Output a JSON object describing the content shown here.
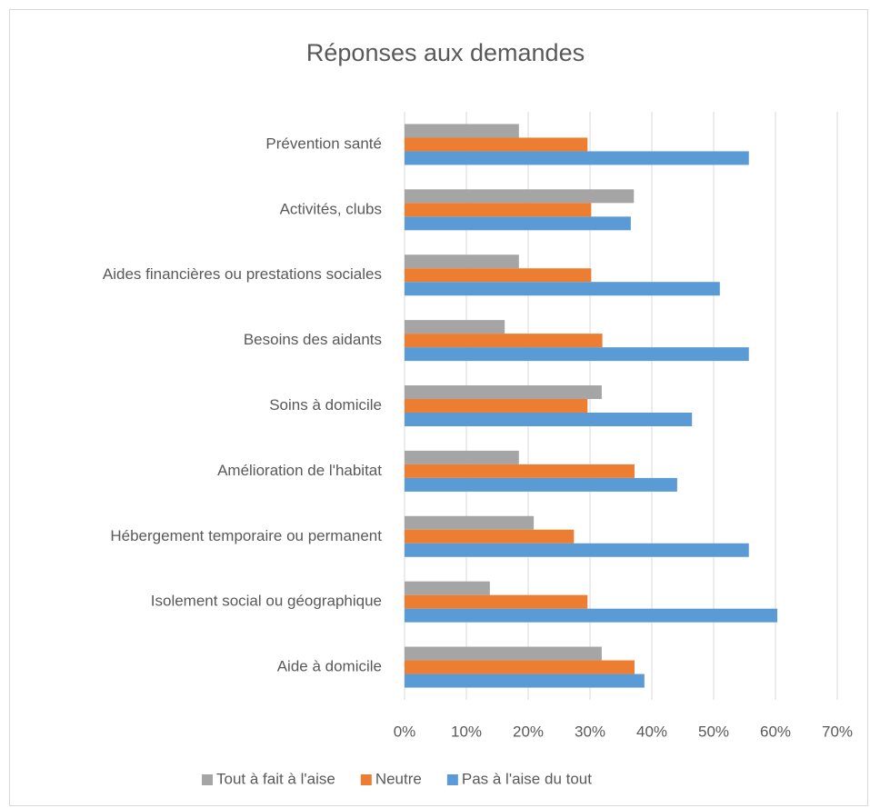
{
  "chart_data": {
    "type": "hbar",
    "title": "Réponses aux demandes",
    "categories": [
      "Prévention santé",
      "Activités, clubs",
      "Aides financières ou prestations sociales",
      "Besoins des aidants",
      "Soins à domicile",
      "Amélioration de l'habitat",
      "Hébergement temporaire ou permanent",
      "Isolement social ou géographique",
      "Aide à domicile"
    ],
    "series": [
      {
        "name": "Tout à fait à l'aise",
        "color": "#a5a5a5",
        "values": [
          18.5,
          37.1,
          18.5,
          16.2,
          31.9,
          18.5,
          20.9,
          13.8,
          31.9
        ]
      },
      {
        "name": "Neutre",
        "color": "#ed7d31",
        "values": [
          29.6,
          30.2,
          30.2,
          32.0,
          29.6,
          37.2,
          27.4,
          29.6,
          37.2
        ]
      },
      {
        "name": "Pas à l'aise du tout",
        "color": "#5b9bd5",
        "values": [
          55.7,
          36.6,
          51.0,
          55.7,
          46.5,
          44.1,
          55.7,
          60.3,
          38.8
        ]
      }
    ],
    "xlim": [
      0,
      70
    ],
    "xticks": [
      {
        "value": 0,
        "label": "0%"
      },
      {
        "value": 10,
        "label": "10%"
      },
      {
        "value": 20,
        "label": "20%"
      },
      {
        "value": 30,
        "label": "30%"
      },
      {
        "value": 40,
        "label": "40%"
      },
      {
        "value": 50,
        "label": "50%"
      },
      {
        "value": 60,
        "label": "60%"
      },
      {
        "value": 70,
        "label": "70%"
      }
    ],
    "grid": true,
    "legend": "bottom"
  }
}
